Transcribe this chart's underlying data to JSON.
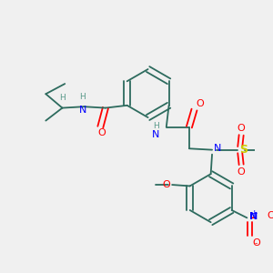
{
  "background_color": "#f0f0f0",
  "bond_color": "#2d6b5e",
  "atom_colors": {
    "N": "#0000ff",
    "O": "#ff0000",
    "S": "#cccc00",
    "H": "#5a9a8a"
  },
  "figsize": [
    3.0,
    3.0
  ],
  "dpi": 100
}
